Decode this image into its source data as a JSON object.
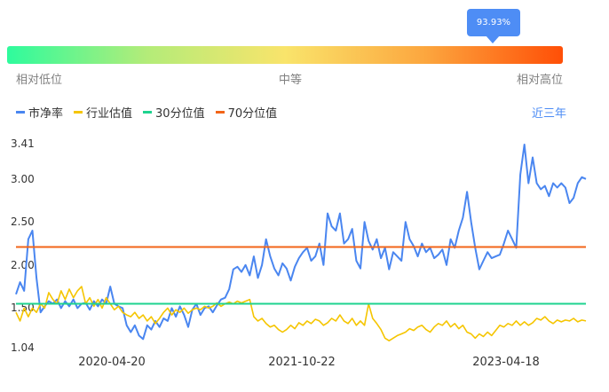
{
  "indicator": {
    "percentile_label": "93.93%",
    "percentile_value": 0.9393,
    "scale_labels": [
      "相对低位",
      "中等",
      "相对高位"
    ],
    "gradient_colors": [
      "#2efb9d",
      "#f9e46b",
      "#ff4f07"
    ]
  },
  "period_label": "近三年",
  "chart_data": {
    "type": "line",
    "legend_position": "top-left",
    "y_ticks": [
      "3.41",
      "3.00",
      "2.50",
      "2.00",
      "1.50",
      "1.04"
    ],
    "x_ticks": [
      "2020-04-20",
      "2021-10-22",
      "2023-04-18"
    ],
    "ylim": [
      1.04,
      3.41
    ],
    "series": [
      {
        "name": "市净率",
        "color": "#4a86f0",
        "values": [
          1.66,
          1.8,
          1.7,
          2.3,
          2.4,
          1.85,
          1.45,
          1.52,
          1.58,
          1.55,
          1.6,
          1.5,
          1.58,
          1.52,
          1.6,
          1.5,
          1.55,
          1.56,
          1.48,
          1.58,
          1.52,
          1.6,
          1.55,
          1.75,
          1.55,
          1.52,
          1.5,
          1.3,
          1.22,
          1.3,
          1.18,
          1.14,
          1.3,
          1.25,
          1.35,
          1.28,
          1.38,
          1.35,
          1.5,
          1.4,
          1.52,
          1.42,
          1.28,
          1.48,
          1.55,
          1.42,
          1.5,
          1.52,
          1.45,
          1.53,
          1.6,
          1.62,
          1.72,
          1.95,
          1.98,
          1.92,
          2.0,
          1.88,
          2.1,
          1.85,
          2.0,
          2.3,
          2.1,
          1.96,
          1.88,
          2.02,
          1.96,
          1.82,
          1.98,
          2.08,
          2.15,
          2.2,
          2.05,
          2.1,
          2.25,
          2.0,
          2.6,
          2.45,
          2.4,
          2.6,
          2.25,
          2.3,
          2.42,
          2.05,
          1.96,
          2.5,
          2.28,
          2.18,
          2.3,
          2.08,
          2.2,
          1.95,
          2.15,
          2.1,
          2.05,
          2.5,
          2.3,
          2.22,
          2.1,
          2.25,
          2.15,
          2.2,
          2.08,
          2.12,
          2.18,
          2.0,
          2.3,
          2.2,
          2.4,
          2.55,
          2.85,
          2.5,
          2.2,
          1.95,
          2.05,
          2.15,
          2.08,
          2.1,
          2.12,
          2.25,
          2.4,
          2.3,
          2.2,
          3.05,
          3.4,
          2.95,
          3.25,
          2.95,
          2.88,
          2.92,
          2.8,
          2.95,
          2.9,
          2.95,
          2.9,
          2.72,
          2.78,
          2.95,
          3.02,
          3.0
        ]
      },
      {
        "name": "行业估值",
        "color": "#f5c500",
        "values": [
          1.45,
          1.35,
          1.5,
          1.4,
          1.5,
          1.45,
          1.55,
          1.5,
          1.68,
          1.6,
          1.55,
          1.7,
          1.6,
          1.72,
          1.62,
          1.7,
          1.75,
          1.55,
          1.62,
          1.52,
          1.6,
          1.5,
          1.62,
          1.55,
          1.48,
          1.52,
          1.45,
          1.42,
          1.4,
          1.45,
          1.38,
          1.42,
          1.35,
          1.4,
          1.32,
          1.38,
          1.45,
          1.5,
          1.42,
          1.48,
          1.45,
          1.5,
          1.44,
          1.48,
          1.5,
          1.48,
          1.52,
          1.5,
          1.52,
          1.56,
          1.52,
          1.55,
          1.57,
          1.55,
          1.58,
          1.56,
          1.58,
          1.6,
          1.4,
          1.35,
          1.38,
          1.32,
          1.28,
          1.3,
          1.25,
          1.22,
          1.25,
          1.3,
          1.26,
          1.33,
          1.3,
          1.35,
          1.32,
          1.37,
          1.35,
          1.3,
          1.33,
          1.38,
          1.35,
          1.42,
          1.35,
          1.32,
          1.38,
          1.3,
          1.35,
          1.3,
          1.55,
          1.38,
          1.32,
          1.25,
          1.15,
          1.12,
          1.15,
          1.18,
          1.2,
          1.22,
          1.26,
          1.24,
          1.28,
          1.3,
          1.25,
          1.22,
          1.28,
          1.32,
          1.3,
          1.35,
          1.28,
          1.32,
          1.26,
          1.3,
          1.22,
          1.2,
          1.15,
          1.2,
          1.17,
          1.22,
          1.18,
          1.24,
          1.3,
          1.28,
          1.32,
          1.3,
          1.35,
          1.3,
          1.34,
          1.3,
          1.33,
          1.38,
          1.36,
          1.4,
          1.35,
          1.32,
          1.36,
          1.34,
          1.36,
          1.35,
          1.38,
          1.34,
          1.36,
          1.35
        ]
      },
      {
        "name": "30分位值",
        "color": "#1ed38f",
        "values": [
          1.55,
          1.55
        ]
      },
      {
        "name": "70分位值",
        "color": "#f26518",
        "values": [
          2.21,
          2.21
        ]
      }
    ]
  }
}
